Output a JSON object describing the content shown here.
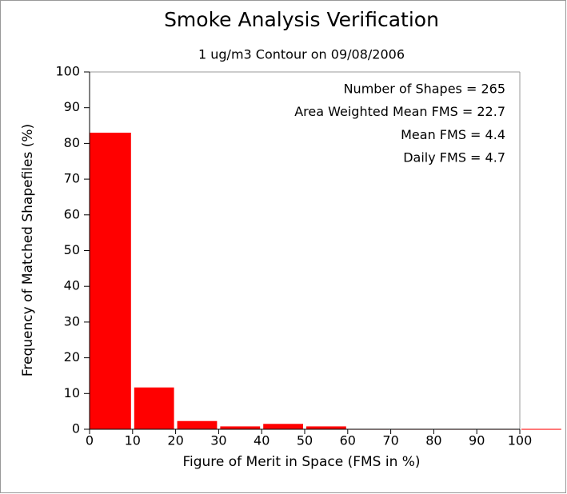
{
  "chart_data": {
    "type": "histogram",
    "title": "Smoke Analysis Verification",
    "subtitle": "1 ug/m3 Contour on 09/08/2006",
    "x_label": "Figure of Merit in Space (FMS in %)",
    "y_label": "Frequency of Matched Shapefiles (%)",
    "annotations": [
      "Number of Shapes = 265",
      "Area Weighted Mean FMS = 22.7",
      "Mean FMS = 4.4",
      "Daily FMS = 4.7"
    ],
    "bins": [
      0,
      10,
      20,
      30,
      40,
      50,
      60,
      70,
      80,
      90,
      100,
      110
    ],
    "counts": [
      83.0,
      11.7,
      2.3,
      0.8,
      1.5,
      0.8,
      0.1,
      0.1,
      0.1,
      0.1,
      0.1
    ],
    "color": "#ff0000",
    "xlim": [
      0,
      100
    ],
    "ylim": [
      0,
      100
    ],
    "xticks": [
      0,
      10,
      20,
      30,
      40,
      50,
      60,
      70,
      80,
      90,
      100
    ],
    "yticks": [
      0,
      10,
      20,
      30,
      40,
      50,
      60,
      70,
      80,
      90,
      100
    ]
  }
}
